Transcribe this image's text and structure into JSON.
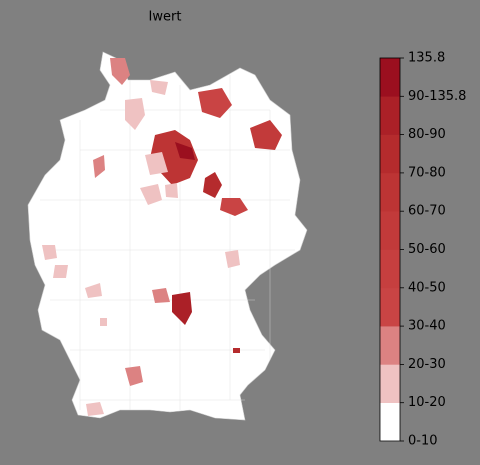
{
  "title": "Iwert",
  "colorbar": {
    "labels": [
      "0-10",
      "10-20",
      "20-30",
      "30-40",
      "40-50",
      "50-60",
      "60-70",
      "70-80",
      "80-90",
      "90-135.8",
      "135.8"
    ],
    "colors": [
      "#ffffff",
      "#efc2c2",
      "#dc8282",
      "#c94444",
      "#c63f3f",
      "#c23a3a",
      "#bd3434",
      "#b52b2d",
      "#ab2027",
      "#9b0f1f"
    ]
  }
}
